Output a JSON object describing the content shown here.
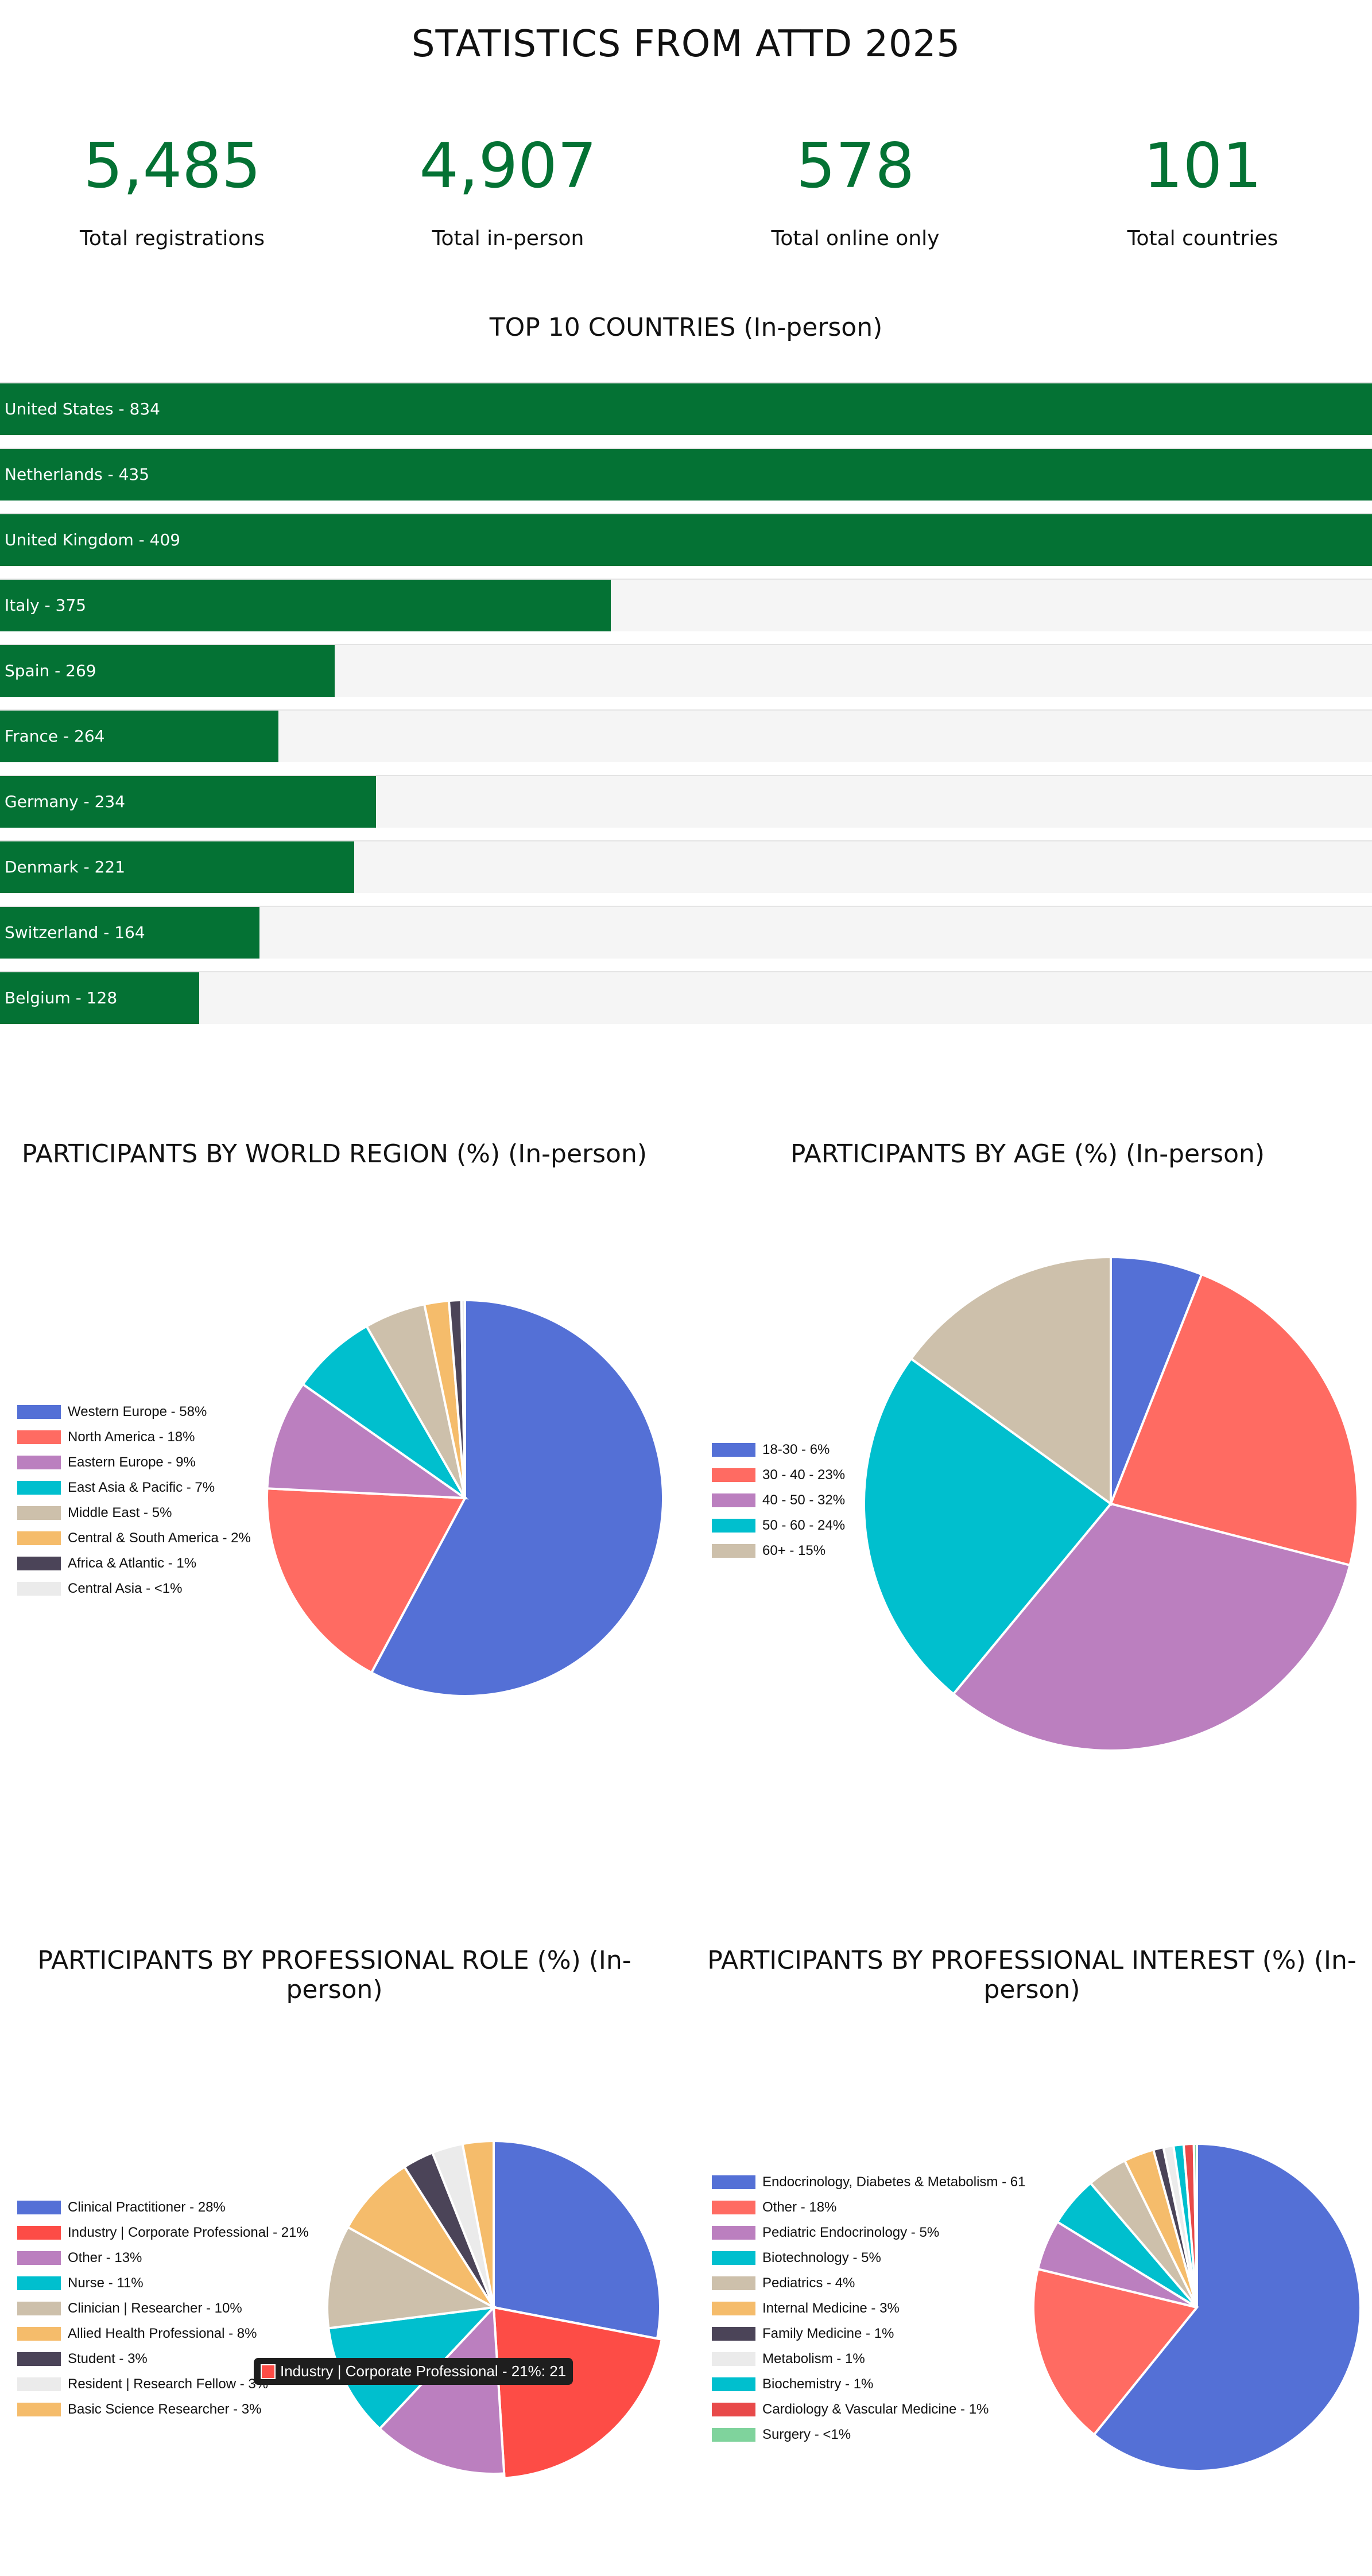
{
  "page_title": "STATISTICS FROM ATTD 2025",
  "stats": [
    {
      "value": "5,485",
      "label": "Total registrations"
    },
    {
      "value": "4,907",
      "label": "Total in-person"
    },
    {
      "value": "578",
      "label": "Total online only"
    },
    {
      "value": "101",
      "label": "Total countries"
    }
  ],
  "chart_data": [
    {
      "type": "bar",
      "title": "TOP 10 COUNTRIES (In-person)",
      "categories": [
        "United States",
        "Netherlands",
        "United Kingdom",
        "Italy",
        "Spain",
        "France",
        "Germany",
        "Denmark",
        "Switzerland",
        "Belgium"
      ],
      "values": [
        834,
        435,
        409,
        375,
        269,
        264,
        234,
        221,
        164,
        128
      ],
      "labels": [
        "United States - 834",
        "Netherlands - 435",
        "United Kingdom - 409",
        "Italy - 375",
        "Spain - 269",
        "France - 264",
        "Germany - 234",
        "Denmark - 221",
        "Switzerland - 164",
        "Belgium - 128"
      ],
      "bar_fill_fraction": [
        1.0,
        1.0,
        1.0,
        0.445,
        0.244,
        0.203,
        0.274,
        0.258,
        0.189,
        0.145
      ],
      "bar_color": "#047234",
      "track_color": "#f5f5f5"
    },
    {
      "type": "pie",
      "title": "PARTICIPANTS BY WORLD REGION (%) (In-person)",
      "legend_position": "left",
      "categories": [
        "Western Europe",
        "North America",
        "Eastern Europe",
        "East Asia & Pacific",
        "Middle East",
        "Central & South America",
        "Africa & Atlantic",
        "Central Asia"
      ],
      "values": [
        58,
        18,
        9,
        7,
        5,
        2,
        1,
        0.3
      ],
      "labels": [
        "Western Europe - 58%",
        "North America - 18%",
        "Eastern Europe - 9%",
        "East Asia & Pacific - 7%",
        "Middle East - 5%",
        "Central & South America - 2%",
        "Africa & Atlantic - 1%",
        "Central Asia - <1%"
      ],
      "colors": [
        "#5470d6",
        "#ff6b62",
        "#bb7fbf",
        "#00bfce",
        "#cdc0ab",
        "#f5bc6b",
        "#4b4458",
        "#ebebeb"
      ]
    },
    {
      "type": "pie",
      "title": "PARTICIPANTS BY AGE (%) (In-person)",
      "legend_position": "left",
      "categories": [
        "18-30",
        "30 - 40",
        "40 - 50",
        "50 - 60",
        "60+"
      ],
      "values": [
        6,
        23,
        32,
        24,
        15
      ],
      "labels": [
        "18-30 - 6%",
        "30 - 40 - 23%",
        "40 - 50 - 32%",
        "50 - 60 - 24%",
        "60+ - 15%"
      ],
      "colors": [
        "#5470d6",
        "#ff6b62",
        "#bb7fbf",
        "#00bfce",
        "#cdc0ab"
      ]
    },
    {
      "type": "pie",
      "title": "PARTICIPANTS BY PROFESSIONAL ROLE (%) (In-person)",
      "legend_position": "left",
      "categories": [
        "Clinical Practitioner",
        "Industry | Corporate Professional",
        "Other",
        "Nurse",
        "Clinician | Researcher",
        "Allied Health Professional",
        "Student",
        "Resident | Research Fellow",
        "Basic Science Researcher"
      ],
      "values": [
        28,
        21,
        13,
        11,
        10,
        8,
        3,
        3,
        3
      ],
      "labels": [
        "Clinical Practitioner - 28%",
        "Industry | Corporate Professional - 21%",
        "Other - 13%",
        "Nurse - 11%",
        "Clinician | Researcher - 10%",
        "Allied Health Professional - 8%",
        "Student - 3%",
        "Resident | Research Fellow - 3%",
        "Basic Science Researcher - 3%"
      ],
      "colors": [
        "#5470d6",
        "#fd4c46",
        "#bb7fbf",
        "#00bfce",
        "#cdc0ab",
        "#f5bc6b",
        "#4b4458",
        "#ebebeb",
        "#f5bc6b"
      ],
      "highlighted_index": 1,
      "highlight_color": "#fd4c46",
      "tooltip": "Industry | Corporate Professional - 21%: 21"
    },
    {
      "type": "pie",
      "title": "PARTICIPANTS BY PROFESSIONAL INTEREST (%) (In-person)",
      "legend_position": "left",
      "categories": [
        "Endocrinology, Diabetes & Metabolism",
        "Other",
        "Pediatric Endocrinology",
        "Biotechnology",
        "Pediatrics",
        "Internal Medicine",
        "Family Medicine",
        "Metabolism",
        "Biochemistry",
        "Cardiology & Vascular Medicine",
        "Surgery"
      ],
      "values": [
        61,
        18,
        5,
        5,
        4,
        3,
        1,
        1,
        1,
        1,
        0.3
      ],
      "labels": [
        "Endocrinology, Diabetes & Metabolism - 61",
        "Other - 18%",
        "Pediatric Endocrinology - 5%",
        "Biotechnology - 5%",
        "Pediatrics - 4%",
        "Internal Medicine - 3%",
        "Family Medicine - 1%",
        "Metabolism - 1%",
        "Biochemistry - 1%",
        "Cardiology & Vascular Medicine - 1%",
        "Surgery - <1%"
      ],
      "colors": [
        "#5470d6",
        "#ff6b62",
        "#bb7fbf",
        "#00bfce",
        "#cdc0ab",
        "#f5bc6b",
        "#4b4458",
        "#ebebeb",
        "#00bfce",
        "#e84a4a",
        "#7fd39c"
      ]
    }
  ]
}
